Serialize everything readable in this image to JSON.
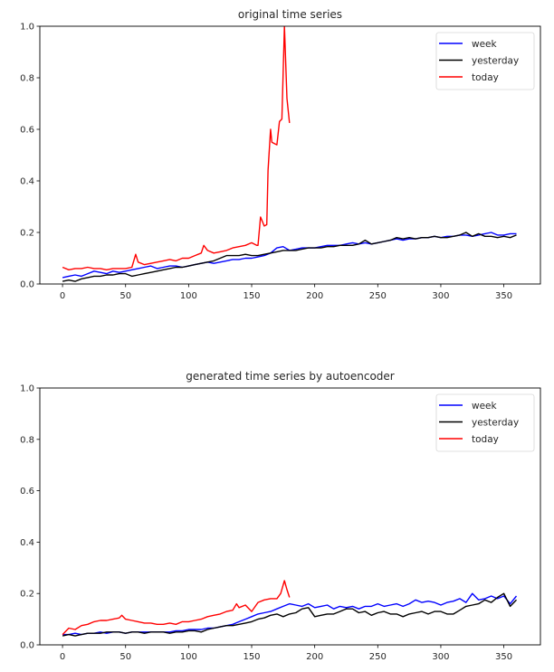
{
  "chart_data": [
    {
      "type": "line",
      "title": "original time series",
      "xlabel": "",
      "ylabel": "",
      "xlim": [
        -18,
        379
      ],
      "ylim": [
        0.0,
        1.0
      ],
      "xticks": [
        "0",
        "50",
        "100",
        "150",
        "200",
        "250",
        "300",
        "350"
      ],
      "xtick_values": [
        0,
        50,
        100,
        150,
        200,
        250,
        300,
        350
      ],
      "yticks": [
        "0.0",
        "0.2",
        "0.4",
        "0.6",
        "0.8",
        "1.0"
      ],
      "ytick_values": [
        0.0,
        0.2,
        0.4,
        0.6,
        0.8,
        1.0
      ],
      "grid": false,
      "legend_position": "top-right",
      "series": [
        {
          "name": "week",
          "color": "#0000ff",
          "x": [
            0,
            5,
            10,
            15,
            20,
            25,
            30,
            35,
            40,
            45,
            50,
            55,
            60,
            65,
            70,
            75,
            80,
            85,
            90,
            95,
            100,
            105,
            110,
            115,
            120,
            125,
            130,
            135,
            140,
            145,
            150,
            155,
            160,
            165,
            170,
            175,
            180,
            185,
            190,
            195,
            200,
            205,
            210,
            215,
            220,
            225,
            230,
            235,
            240,
            245,
            250,
            255,
            260,
            265,
            270,
            275,
            280,
            285,
            290,
            295,
            300,
            305,
            310,
            315,
            320,
            325,
            330,
            335,
            340,
            345,
            350,
            355,
            360
          ],
          "values": [
            0.025,
            0.03,
            0.035,
            0.03,
            0.04,
            0.05,
            0.045,
            0.04,
            0.05,
            0.045,
            0.05,
            0.055,
            0.06,
            0.065,
            0.07,
            0.06,
            0.065,
            0.07,
            0.07,
            0.065,
            0.07,
            0.075,
            0.08,
            0.085,
            0.08,
            0.085,
            0.09,
            0.095,
            0.095,
            0.1,
            0.1,
            0.105,
            0.11,
            0.12,
            0.14,
            0.145,
            0.13,
            0.135,
            0.14,
            0.14,
            0.14,
            0.145,
            0.15,
            0.15,
            0.15,
            0.155,
            0.16,
            0.155,
            0.16,
            0.155,
            0.16,
            0.165,
            0.17,
            0.175,
            0.17,
            0.175,
            0.175,
            0.18,
            0.18,
            0.185,
            0.18,
            0.185,
            0.185,
            0.19,
            0.19,
            0.185,
            0.19,
            0.195,
            0.2,
            0.19,
            0.19,
            0.195,
            0.195
          ]
        },
        {
          "name": "yesterday",
          "color": "#000000",
          "x": [
            0,
            5,
            10,
            15,
            20,
            25,
            30,
            35,
            40,
            45,
            50,
            55,
            60,
            65,
            70,
            75,
            80,
            85,
            90,
            95,
            100,
            105,
            110,
            115,
            120,
            125,
            130,
            135,
            140,
            145,
            150,
            155,
            160,
            165,
            170,
            175,
            180,
            185,
            190,
            195,
            200,
            205,
            210,
            215,
            220,
            225,
            230,
            235,
            240,
            245,
            250,
            255,
            260,
            265,
            270,
            275,
            280,
            285,
            290,
            295,
            300,
            305,
            310,
            315,
            320,
            325,
            330,
            335,
            340,
            345,
            350,
            355,
            360
          ],
          "values": [
            0.01,
            0.015,
            0.01,
            0.02,
            0.025,
            0.03,
            0.03,
            0.035,
            0.035,
            0.04,
            0.04,
            0.03,
            0.035,
            0.04,
            0.045,
            0.05,
            0.055,
            0.06,
            0.065,
            0.065,
            0.07,
            0.075,
            0.08,
            0.085,
            0.09,
            0.1,
            0.11,
            0.11,
            0.11,
            0.115,
            0.11,
            0.11,
            0.115,
            0.12,
            0.125,
            0.13,
            0.13,
            0.13,
            0.135,
            0.14,
            0.14,
            0.14,
            0.145,
            0.145,
            0.15,
            0.15,
            0.15,
            0.155,
            0.17,
            0.155,
            0.16,
            0.165,
            0.17,
            0.18,
            0.175,
            0.18,
            0.175,
            0.18,
            0.18,
            0.185,
            0.18,
            0.18,
            0.185,
            0.19,
            0.2,
            0.185,
            0.195,
            0.185,
            0.185,
            0.18,
            0.185,
            0.18,
            0.19
          ]
        },
        {
          "name": "today",
          "color": "#ff0000",
          "x": [
            0,
            5,
            10,
            15,
            20,
            25,
            30,
            35,
            40,
            45,
            50,
            55,
            58,
            60,
            65,
            70,
            75,
            80,
            85,
            90,
            95,
            100,
            105,
            110,
            112,
            115,
            120,
            125,
            130,
            135,
            140,
            145,
            150,
            154,
            155,
            157,
            160,
            162,
            163,
            165,
            166,
            168,
            170,
            172,
            174,
            176,
            178,
            180
          ],
          "values": [
            0.065,
            0.055,
            0.06,
            0.06,
            0.065,
            0.06,
            0.06,
            0.055,
            0.06,
            0.06,
            0.06,
            0.065,
            0.115,
            0.085,
            0.075,
            0.08,
            0.085,
            0.09,
            0.095,
            0.09,
            0.1,
            0.1,
            0.11,
            0.12,
            0.15,
            0.13,
            0.12,
            0.125,
            0.13,
            0.14,
            0.145,
            0.15,
            0.16,
            0.15,
            0.15,
            0.26,
            0.225,
            0.23,
            0.44,
            0.6,
            0.55,
            0.545,
            0.54,
            0.63,
            0.64,
            1.0,
            0.72,
            0.625
          ]
        }
      ]
    },
    {
      "type": "line",
      "title": "generated time series by autoencoder",
      "xlabel": "",
      "ylabel": "",
      "xlim": [
        -18,
        379
      ],
      "ylim": [
        0.0,
        1.0
      ],
      "xticks": [
        "0",
        "50",
        "100",
        "150",
        "200",
        "250",
        "300",
        "350"
      ],
      "xtick_values": [
        0,
        50,
        100,
        150,
        200,
        250,
        300,
        350
      ],
      "yticks": [
        "0.0",
        "0.2",
        "0.4",
        "0.6",
        "0.8",
        "1.0"
      ],
      "ytick_values": [
        0.0,
        0.2,
        0.4,
        0.6,
        0.8,
        1.0
      ],
      "grid": false,
      "legend_position": "top-right",
      "series": [
        {
          "name": "week",
          "color": "#0000ff",
          "x": [
            0,
            5,
            10,
            15,
            20,
            25,
            30,
            35,
            40,
            45,
            50,
            55,
            60,
            65,
            70,
            75,
            80,
            85,
            90,
            95,
            100,
            105,
            110,
            115,
            120,
            125,
            130,
            135,
            140,
            145,
            150,
            155,
            160,
            165,
            170,
            175,
            180,
            185,
            190,
            195,
            200,
            205,
            210,
            215,
            220,
            225,
            230,
            235,
            240,
            245,
            250,
            255,
            260,
            265,
            270,
            275,
            280,
            285,
            290,
            295,
            300,
            305,
            310,
            315,
            320,
            325,
            330,
            335,
            340,
            345,
            350,
            355,
            360
          ],
          "values": [
            0.04,
            0.04,
            0.045,
            0.04,
            0.045,
            0.045,
            0.05,
            0.045,
            0.05,
            0.05,
            0.045,
            0.05,
            0.05,
            0.05,
            0.05,
            0.05,
            0.05,
            0.05,
            0.055,
            0.055,
            0.06,
            0.06,
            0.06,
            0.065,
            0.065,
            0.07,
            0.075,
            0.08,
            0.09,
            0.1,
            0.11,
            0.12,
            0.125,
            0.13,
            0.14,
            0.15,
            0.16,
            0.155,
            0.15,
            0.16,
            0.145,
            0.15,
            0.155,
            0.14,
            0.15,
            0.145,
            0.15,
            0.14,
            0.15,
            0.15,
            0.16,
            0.15,
            0.155,
            0.16,
            0.15,
            0.16,
            0.175,
            0.165,
            0.17,
            0.165,
            0.155,
            0.165,
            0.17,
            0.18,
            0.165,
            0.2,
            0.175,
            0.18,
            0.19,
            0.18,
            0.19,
            0.16,
            0.19
          ]
        },
        {
          "name": "yesterday",
          "color": "#000000",
          "x": [
            0,
            5,
            10,
            15,
            20,
            25,
            30,
            35,
            40,
            45,
            50,
            55,
            60,
            65,
            70,
            75,
            80,
            85,
            90,
            95,
            100,
            105,
            110,
            115,
            120,
            125,
            130,
            135,
            140,
            145,
            150,
            155,
            160,
            165,
            170,
            175,
            180,
            185,
            190,
            195,
            200,
            205,
            210,
            215,
            220,
            225,
            230,
            235,
            240,
            245,
            250,
            255,
            260,
            265,
            270,
            275,
            280,
            285,
            290,
            295,
            300,
            305,
            310,
            315,
            320,
            325,
            330,
            335,
            340,
            345,
            350,
            355,
            360
          ],
          "values": [
            0.035,
            0.04,
            0.035,
            0.04,
            0.045,
            0.045,
            0.045,
            0.05,
            0.05,
            0.05,
            0.045,
            0.05,
            0.05,
            0.045,
            0.05,
            0.05,
            0.05,
            0.045,
            0.05,
            0.05,
            0.055,
            0.055,
            0.05,
            0.06,
            0.065,
            0.07,
            0.075,
            0.075,
            0.08,
            0.085,
            0.09,
            0.1,
            0.105,
            0.115,
            0.12,
            0.11,
            0.12,
            0.125,
            0.14,
            0.145,
            0.11,
            0.115,
            0.12,
            0.12,
            0.13,
            0.14,
            0.14,
            0.125,
            0.13,
            0.115,
            0.125,
            0.13,
            0.12,
            0.12,
            0.11,
            0.12,
            0.125,
            0.13,
            0.12,
            0.13,
            0.13,
            0.12,
            0.12,
            0.135,
            0.15,
            0.155,
            0.16,
            0.175,
            0.165,
            0.185,
            0.2,
            0.15,
            0.175
          ]
        },
        {
          "name": "today",
          "color": "#ff0000",
          "x": [
            0,
            5,
            10,
            15,
            20,
            25,
            30,
            35,
            40,
            45,
            47,
            50,
            55,
            60,
            65,
            70,
            75,
            80,
            85,
            90,
            95,
            100,
            105,
            110,
            115,
            120,
            125,
            130,
            135,
            138,
            140,
            145,
            150,
            155,
            160,
            165,
            170,
            173,
            176,
            178,
            180
          ],
          "values": [
            0.04,
            0.065,
            0.06,
            0.075,
            0.08,
            0.09,
            0.095,
            0.095,
            0.1,
            0.105,
            0.115,
            0.1,
            0.095,
            0.09,
            0.085,
            0.085,
            0.08,
            0.08,
            0.085,
            0.08,
            0.09,
            0.09,
            0.095,
            0.1,
            0.11,
            0.115,
            0.12,
            0.13,
            0.135,
            0.16,
            0.145,
            0.155,
            0.13,
            0.165,
            0.175,
            0.18,
            0.18,
            0.2,
            0.25,
            0.215,
            0.185
          ]
        }
      ]
    }
  ]
}
